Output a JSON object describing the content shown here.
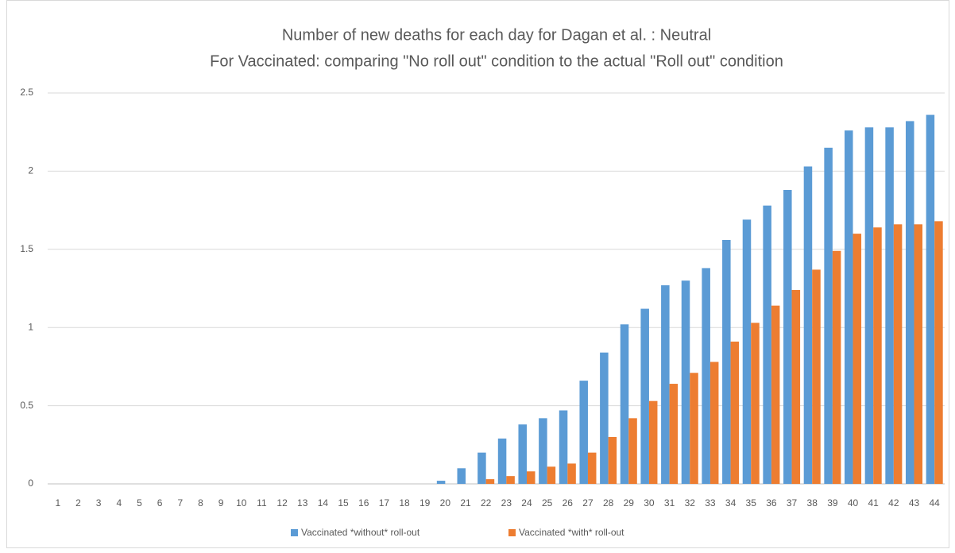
{
  "chart_data": {
    "type": "bar",
    "title": "Number of new deaths for each day for Dagan et al. : Neutral",
    "subtitle": "For Vaccinated: comparing \"No roll out\" condition to the actual \"Roll out\" condition",
    "categories": [
      "1",
      "2",
      "3",
      "4",
      "5",
      "6",
      "7",
      "8",
      "9",
      "10",
      "11",
      "12",
      "13",
      "14",
      "15",
      "16",
      "17",
      "18",
      "19",
      "20",
      "21",
      "22",
      "23",
      "24",
      "25",
      "26",
      "27",
      "28",
      "29",
      "30",
      "31",
      "32",
      "33",
      "34",
      "35",
      "36",
      "37",
      "38",
      "39",
      "40",
      "41",
      "42",
      "43",
      "44"
    ],
    "series": [
      {
        "name": "Vaccinated *without* roll-out",
        "color": "#5b9bd5",
        "values": [
          0,
          0,
          0,
          0,
          0,
          0,
          0,
          0,
          0,
          0,
          0,
          0,
          0,
          0,
          0,
          0,
          0,
          0,
          0,
          0.02,
          0.1,
          0.2,
          0.29,
          0.38,
          0.42,
          0.47,
          0.66,
          0.84,
          1.02,
          1.12,
          1.27,
          1.3,
          1.38,
          1.56,
          1.69,
          1.78,
          1.88,
          2.03,
          2.15,
          2.26,
          2.28,
          2.28,
          2.32,
          2.36
        ]
      },
      {
        "name": "Vaccinated *with* roll-out",
        "color": "#ed7d31",
        "values": [
          0,
          0,
          0,
          0,
          0,
          0,
          0,
          0,
          0,
          0,
          0,
          0,
          0,
          0,
          0,
          0,
          0,
          0,
          0,
          0,
          0,
          0.03,
          0.05,
          0.08,
          0.11,
          0.13,
          0.2,
          0.3,
          0.42,
          0.53,
          0.64,
          0.71,
          0.78,
          0.91,
          1.03,
          1.14,
          1.24,
          1.37,
          1.49,
          1.6,
          1.64,
          1.66,
          1.66,
          1.68
        ]
      }
    ],
    "ylim": [
      0,
      2.5
    ],
    "yticks": [
      0,
      0.5,
      1,
      1.5,
      2,
      2.5
    ],
    "grid": true,
    "legend": "bottom"
  }
}
